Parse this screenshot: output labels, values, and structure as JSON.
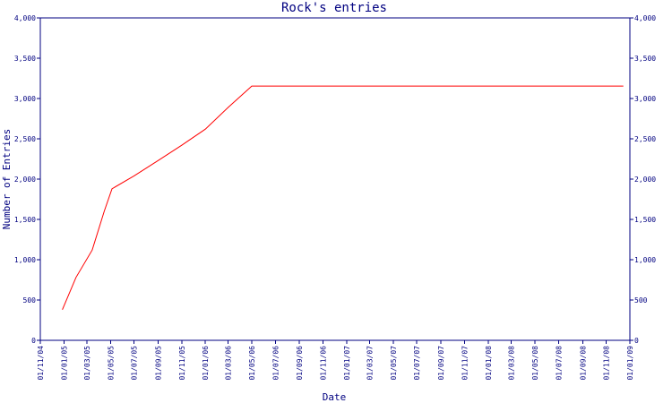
{
  "chart_data": {
    "type": "line",
    "title": "Rock's entries",
    "xlabel": "Date",
    "ylabel": "Number of Entries",
    "ylim": [
      0,
      4000
    ],
    "y_ticks": [
      0,
      500,
      1000,
      1500,
      2000,
      2500,
      3000,
      3500,
      4000
    ],
    "y_tick_labels": [
      "0",
      "500",
      "1,000",
      "1,500",
      "2,000",
      "2,500",
      "3,000",
      "3,500",
      "4,000"
    ],
    "x_range": [
      "2004-11-01",
      "2009-01-01"
    ],
    "x_ticks": [
      "2004-11-01",
      "2005-01-01",
      "2005-03-01",
      "2005-05-01",
      "2005-07-01",
      "2005-09-01",
      "2005-11-01",
      "2006-01-01",
      "2006-03-01",
      "2006-05-01",
      "2006-07-01",
      "2006-09-01",
      "2006-11-01",
      "2007-01-01",
      "2007-03-01",
      "2007-05-01",
      "2007-07-01",
      "2007-09-01",
      "2007-11-01",
      "2008-01-01",
      "2008-03-01",
      "2008-05-01",
      "2008-07-01",
      "2008-09-01",
      "2008-11-01",
      "2009-01-01"
    ],
    "x_tick_labels": [
      "01/11/04",
      "01/01/05",
      "01/03/05",
      "01/05/05",
      "01/07/05",
      "01/09/05",
      "01/11/05",
      "01/01/06",
      "01/03/06",
      "01/05/06",
      "01/07/06",
      "01/09/06",
      "01/11/06",
      "01/01/07",
      "01/03/07",
      "01/05/07",
      "01/07/07",
      "01/09/07",
      "01/11/07",
      "01/01/08",
      "01/03/08",
      "01/05/08",
      "01/07/08",
      "01/09/08",
      "01/11/08",
      "01/01/09"
    ],
    "grid": false,
    "right_axis_mirror": true,
    "series": [
      {
        "color": "#ff0000",
        "points": [
          {
            "x": "2004-12-28",
            "y": 380
          },
          {
            "x": "2005-02-01",
            "y": 780
          },
          {
            "x": "2005-03-15",
            "y": 1120
          },
          {
            "x": "2005-04-15",
            "y": 1600
          },
          {
            "x": "2005-05-05",
            "y": 1880
          },
          {
            "x": "2005-07-01",
            "y": 2040
          },
          {
            "x": "2005-09-01",
            "y": 2230
          },
          {
            "x": "2005-11-01",
            "y": 2420
          },
          {
            "x": "2006-01-01",
            "y": 2620
          },
          {
            "x": "2006-03-01",
            "y": 2890
          },
          {
            "x": "2006-05-01",
            "y": 3155
          },
          {
            "x": "2006-07-01",
            "y": 3155
          },
          {
            "x": "2007-01-01",
            "y": 3155
          },
          {
            "x": "2008-01-01",
            "y": 3155
          },
          {
            "x": "2008-12-15",
            "y": 3155
          }
        ]
      }
    ]
  }
}
